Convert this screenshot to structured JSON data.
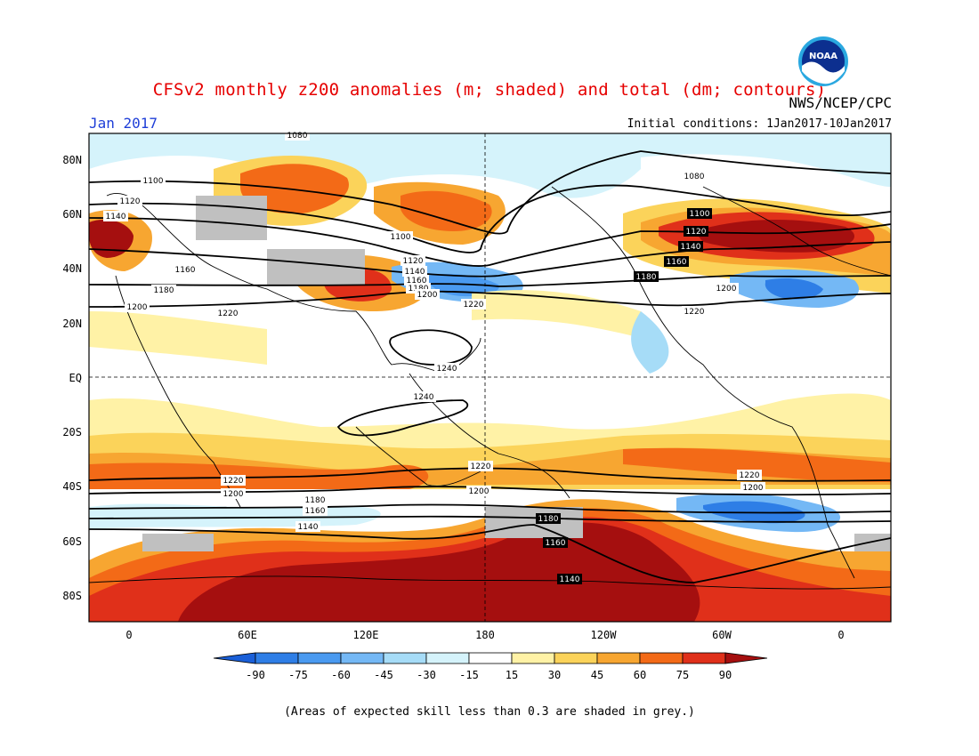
{
  "header": {
    "title": "CFSv2 monthly z200 anomalies (m; shaded) and total (dm; contours)",
    "agency": "NWS/NCEP/CPC",
    "month": "Jan 2017",
    "initial_conditions": "Initial conditions: 1Jan2017-10Jan2017",
    "logo_text": "NOAA"
  },
  "map": {
    "lat_labels": [
      "80N",
      "60N",
      "40N",
      "20N",
      "EQ",
      "20S",
      "40S",
      "60S",
      "80S"
    ],
    "lon_labels": [
      "0",
      "60E",
      "120E",
      "180",
      "120W",
      "60W",
      "0"
    ],
    "contour_labels": [
      "1080",
      "1100",
      "1120",
      "1140",
      "1160",
      "1180",
      "1200",
      "1220",
      "1240"
    ],
    "grey_meaning": "skill < 0.3"
  },
  "colorbar": {
    "ticks": [
      "-90",
      "-75",
      "-60",
      "-45",
      "-30",
      "-15",
      "15",
      "30",
      "45",
      "60",
      "75",
      "90"
    ],
    "colors": [
      "#1a5fd8",
      "#2e7ee6",
      "#4a9af0",
      "#74b8f5",
      "#a6dcf7",
      "#d5f3fb",
      "#ffffff",
      "#fff2a6",
      "#fbd35a",
      "#f7a631",
      "#f36a17",
      "#e0301a",
      "#a50f0f"
    ]
  },
  "footer": {
    "note": "(Areas of expected skill less than 0.3 are shaded in grey.)"
  }
}
